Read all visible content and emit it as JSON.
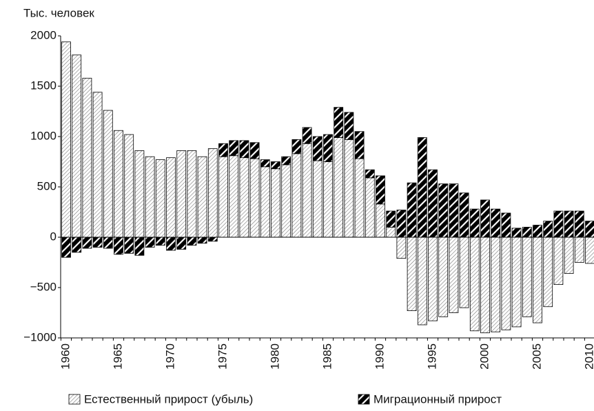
{
  "chart_data": {
    "type": "stacked_bar",
    "y_axis_label": "Тыс. человек",
    "categories": [
      "1960",
      null,
      null,
      null,
      null,
      "1965",
      null,
      null,
      null,
      null,
      "1970",
      null,
      null,
      null,
      null,
      "1975",
      null,
      null,
      null,
      null,
      "1980",
      null,
      null,
      null,
      null,
      "1985",
      null,
      null,
      null,
      null,
      "1990",
      null,
      null,
      null,
      null,
      "1995",
      null,
      null,
      null,
      null,
      "2000",
      null,
      null,
      null,
      null,
      "2005",
      null,
      null,
      null,
      null,
      "2010"
    ],
    "series": [
      {
        "name": "Естественный прирост (убыль)",
        "color": "#777777",
        "values": [
          1940,
          1810,
          1580,
          1440,
          1260,
          1060,
          1020,
          860,
          800,
          770,
          790,
          860,
          860,
          800,
          880,
          800,
          810,
          790,
          780,
          700,
          680,
          720,
          830,
          930,
          760,
          750,
          990,
          970,
          780,
          590,
          330,
          100,
          -210,
          -730,
          -870,
          -830,
          -790,
          -750,
          -700,
          -930,
          -950,
          -940,
          -920,
          -890,
          -790,
          -850,
          -690,
          -470,
          -360,
          -250,
          -260
        ]
      },
      {
        "name": "Миграционный прирост",
        "color": "#000000",
        "values": [
          -200,
          -150,
          -110,
          -100,
          -110,
          -170,
          -160,
          -180,
          -100,
          -80,
          -130,
          -120,
          -80,
          -60,
          -40,
          130,
          150,
          170,
          160,
          70,
          70,
          80,
          140,
          160,
          240,
          270,
          300,
          270,
          270,
          80,
          280,
          160,
          270,
          540,
          990,
          670,
          530,
          530,
          440,
          280,
          370,
          280,
          240,
          90,
          100,
          120,
          160,
          260,
          260,
          260,
          160
        ]
      }
    ],
    "ylim": [
      -1000,
      2000
    ],
    "yticks": [
      {
        "value": -1000,
        "label": "−1000"
      },
      {
        "value": -500,
        "label": "−500"
      },
      0,
      500,
      1000,
      1500,
      2000
    ],
    "grid": false,
    "legend": "bottom"
  }
}
